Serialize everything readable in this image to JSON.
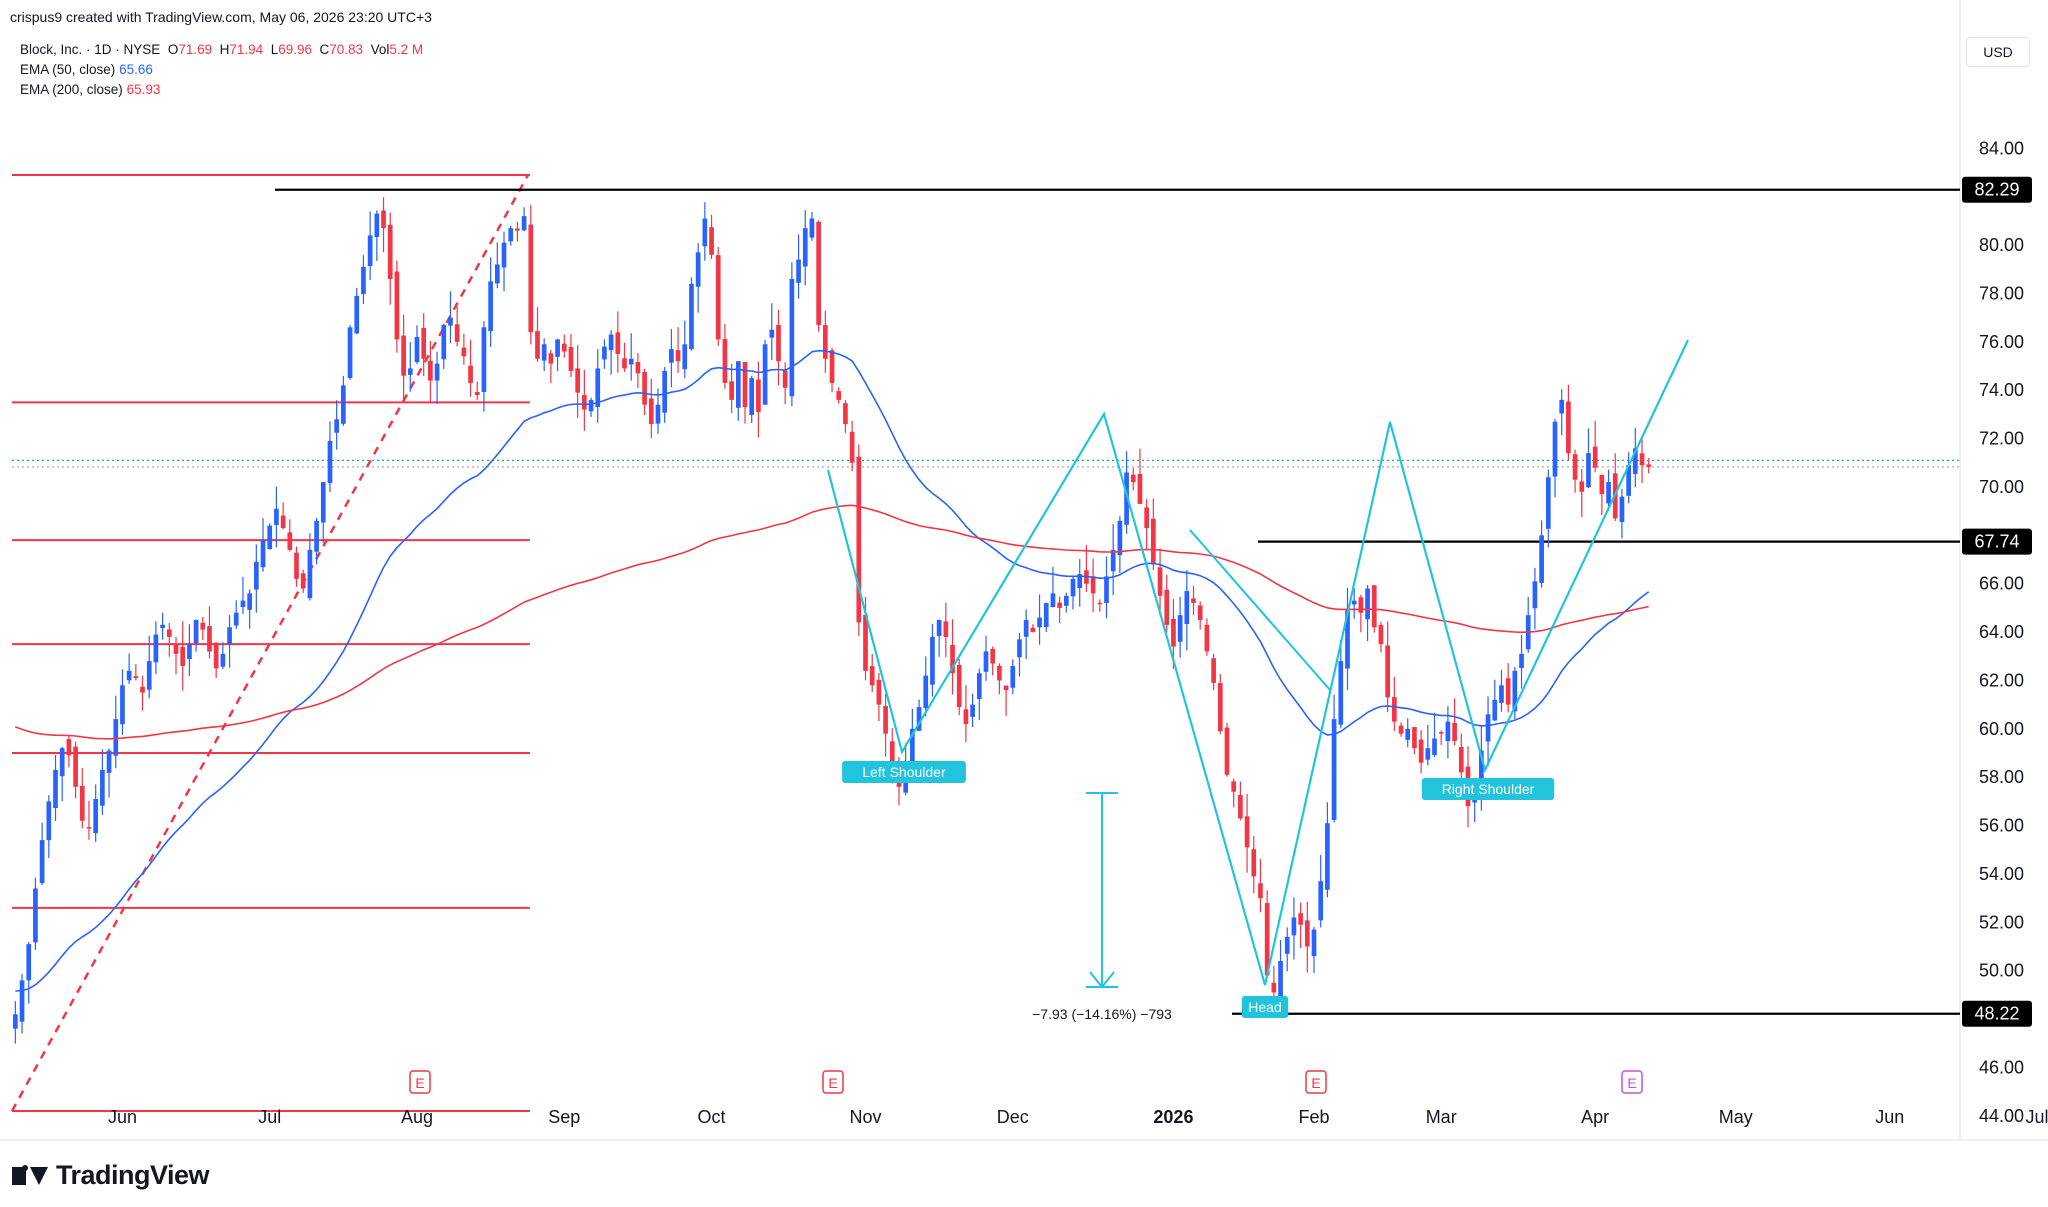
{
  "credit": "crispus9 created with TradingView.com, May 06, 2026 23:20 UTC+3",
  "legend": {
    "symbol": "Block, Inc. · 1D · NYSE",
    "o_label": "O",
    "o": "71.69",
    "h_label": "H",
    "h": "71.94",
    "l_label": "L",
    "l": "69.96",
    "c_label": "C",
    "c": "70.83",
    "vol_label": "Vol",
    "vol": "5.2 M",
    "ema50_label": "EMA (50, close)",
    "ema50": "65.66",
    "ema200_label": "EMA (200, close)",
    "ema200": "65.93"
  },
  "currency": "USD",
  "brand": "TradingView",
  "colors": {
    "up": "#2962ff",
    "down": "#f23645",
    "ema50": "#2962ff",
    "ema200": "#f23645",
    "pattern": "#22c3dd",
    "fib": "#f23645"
  },
  "chart_data": {
    "type": "candlestick",
    "y_range": [
      43,
      86
    ],
    "y_ticks": [
      "84.00",
      "82.29",
      "80.00",
      "78.00",
      "76.00",
      "74.00",
      "72.00",
      "70.00",
      "67.74",
      "66.00",
      "64.00",
      "62.00",
      "60.00",
      "58.00",
      "56.00",
      "54.00",
      "52.00",
      "50.00",
      "48.22",
      "46.00",
      "44.00"
    ],
    "x_ticks": [
      {
        "label": "Jun",
        "i": 16
      },
      {
        "label": "Jul",
        "i": 38
      },
      {
        "label": "Aug",
        "i": 60
      },
      {
        "label": "Sep",
        "i": 82
      },
      {
        "label": "Oct",
        "i": 104
      },
      {
        "label": "Nov",
        "i": 127
      },
      {
        "label": "Dec",
        "i": 149
      },
      {
        "label": "2026",
        "i": 173,
        "bold": true
      },
      {
        "label": "Feb",
        "i": 194
      },
      {
        "label": "Mar",
        "i": 213
      },
      {
        "label": "Apr",
        "i": 236
      },
      {
        "label": "May",
        "i": 257
      },
      {
        "label": "Jun",
        "i": 280
      },
      {
        "label": "Jul",
        "i": 302
      }
    ],
    "closes": [
      48.2,
      49.6,
      51.1,
      53.4,
      55.4,
      57.0,
      58.3,
      59.2,
      58.9,
      57.6,
      56.2,
      55.9,
      57.1,
      58.3,
      59.1,
      60.4,
      61.8,
      62.4,
      62.1,
      61.5,
      62.8,
      63.9,
      64.3,
      63.8,
      63.1,
      62.6,
      63.5,
      64.5,
      64.1,
      63.2,
      62.5,
      63.1,
      64.2,
      64.8,
      65.3,
      65.6,
      66.9,
      67.8,
      68.4,
      69.1,
      68.3,
      67.4,
      66.2,
      65.8,
      67.4,
      68.6,
      70.2,
      71.9,
      72.8,
      74.2,
      76.6,
      77.9,
      79.1,
      80.4,
      81.3,
      80.7,
      78.6,
      76.1,
      74.6,
      74.9,
      76.2,
      75.3,
      74.4,
      75.1,
      76.7,
      77.0,
      76.0,
      75.4,
      74.3,
      73.8,
      76.6,
      78.5,
      79.2,
      80.1,
      80.7,
      80.6,
      81.2,
      76.4,
      75.3,
      75.9,
      75.1,
      76.1,
      75.6,
      74.8,
      73.9,
      73.2,
      73.6,
      74.9,
      75.8,
      76.3,
      75.5,
      74.9,
      75.3,
      74.7,
      73.4,
      72.6,
      73.4,
      74.8,
      75.7,
      75.2,
      75.9,
      78.4,
      79.7,
      81.1,
      79.6,
      76.1,
      74.3,
      73.6,
      75.2,
      73.3,
      74.5,
      73.1,
      75.9,
      76.5,
      75.2,
      74.1,
      78.6,
      79.4,
      80.7,
      81.1,
      76.7,
      75.3,
      74.3,
      73.6,
      72.6,
      71.0,
      64.4,
      62.4,
      61.8,
      61.0,
      59.8,
      58.2,
      57.6,
      58.6,
      60.0,
      60.9,
      62.2,
      63.8,
      64.5,
      63.8,
      62.3,
      60.9,
      60.2,
      61.0,
      62.3,
      63.2,
      62.7,
      62.0,
      61.6,
      62.6,
      63.7,
      64.5,
      64.0,
      64.6,
      65.2,
      65.6,
      65.0,
      65.5,
      66.2,
      66.4,
      66.0,
      65.6,
      65.2,
      66.3,
      67.4,
      68.6,
      70.6,
      70.2,
      69.3,
      68.3,
      66.8,
      65.5,
      64.3,
      63.4,
      64.7,
      65.7,
      65.2,
      64.5,
      63.2,
      61.9,
      59.9,
      58.1,
      57.4,
      56.3,
      55.1,
      53.9,
      53.0,
      49.8,
      49.1,
      50.4,
      51.4,
      52.2,
      51.9,
      51.0,
      51.7,
      53.7,
      56.1,
      60.4,
      62.8,
      64.9,
      65.3,
      64.8,
      65.8,
      64.2,
      63.5,
      61.3,
      60.3,
      59.8,
      60.0,
      59.2,
      58.6,
      59.2,
      59.6,
      59.8,
      60.3,
      59.5,
      58.2,
      56.8,
      57.5,
      59.1,
      60.6,
      61.2,
      61.8,
      61.0,
      62.4,
      63.1,
      64.7,
      66.1,
      68.0,
      70.4,
      72.7,
      73.6,
      71.4,
      70.3,
      69.8,
      71.4,
      70.8,
      69.7,
      70.2,
      68.7,
      69.6,
      70.9,
      71.6,
      70.9,
      70.83
    ],
    "candle_seed": 7,
    "ema50_label": "EMA (50, close)",
    "ema200_label": "EMA (200, close)",
    "price_labels": [
      "82.29",
      "67.74",
      "48.22"
    ],
    "pattern_labels": {
      "left": "Left Shoulder",
      "head": "Head",
      "right": "Right Shoulder"
    },
    "measure_label": "−7.93 (−14.16%) −793",
    "earnings_marker": "E",
    "fib_levels": [
      82.9,
      73.5,
      67.8,
      63.5,
      59.0,
      52.6,
      44.2
    ],
    "support_resistance": [
      82.29,
      67.74,
      48.22
    ]
  }
}
